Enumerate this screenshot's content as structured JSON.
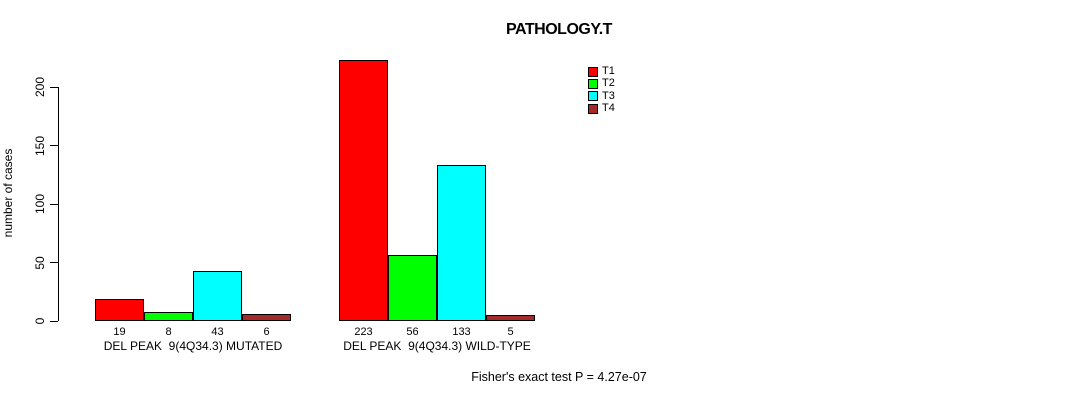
{
  "chart_data": {
    "type": "bar",
    "title": "PATHOLOGY.T",
    "ylabel": "number of cases",
    "xlabel": "",
    "categories": [
      "DEL PEAK  9(4Q34.3) MUTATED",
      "DEL PEAK  9(4Q34.3) WILD-TYPE"
    ],
    "series": [
      {
        "name": "T1",
        "color": "#FF0000",
        "values": [
          19,
          223
        ]
      },
      {
        "name": "T2",
        "color": "#00FF00",
        "values": [
          8,
          56
        ]
      },
      {
        "name": "T3",
        "color": "#00FFFF",
        "values": [
          43,
          133
        ]
      },
      {
        "name": "T4",
        "color": "#A52A2A",
        "values": [
          6,
          5
        ]
      }
    ],
    "bar_value_labels": true,
    "yticks": [
      0,
      50,
      100,
      150,
      200
    ],
    "ylim": [
      0,
      234
    ],
    "grid": false,
    "legend_position": "inside-top-right",
    "annotation": "Fisher's exact test P = 4.27e-07",
    "axis_color": "#000000",
    "background": "#FFFFFF"
  }
}
